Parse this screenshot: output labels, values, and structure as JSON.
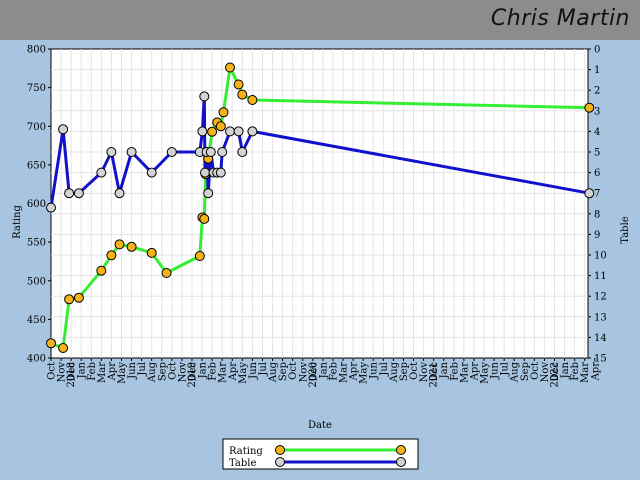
{
  "header": {
    "player_name": "Chris Martin"
  },
  "colors": {
    "rating_line": "#33ee33",
    "table_line": "#1111cc",
    "rating_marker": "#f5b21b",
    "table_marker": "#d3d3d3",
    "background": "#a7c4e0",
    "header": "#8c8c8c"
  },
  "chart_data": {
    "type": "line",
    "xlabel": "Date",
    "ylabel_left": "Rating",
    "ylabel_right": "Table",
    "y_left_range": [
      400,
      800
    ],
    "y_left_ticks": [
      400,
      450,
      500,
      550,
      600,
      650,
      700,
      750,
      800
    ],
    "y_right_range": [
      0,
      15
    ],
    "y_right_ticks": [
      0,
      1,
      2,
      3,
      4,
      5,
      6,
      7,
      8,
      9,
      10,
      11,
      12,
      13,
      14,
      15
    ],
    "x_month_labels": [
      "Oct",
      "Nov",
      "Dec",
      "Jan",
      "Feb",
      "Mar",
      "Apr",
      "May",
      "Jun",
      "Jul",
      "Aug",
      "Sep",
      "Oct",
      "Nov",
      "Dec",
      "Jan",
      "Feb",
      "Mar",
      "Apr",
      "May",
      "Jun",
      "Jul",
      "Aug",
      "Sep",
      "Oct",
      "Nov",
      "Dec",
      "Jan",
      "Feb",
      "Mar",
      "Apr",
      "May",
      "Jun",
      "Jul",
      "Aug",
      "Sep",
      "Oct",
      "Nov",
      "Dec",
      "Jan",
      "Feb",
      "Mar",
      "Apr",
      "May",
      "Jun",
      "Jul",
      "Aug",
      "Sep",
      "Oct",
      "Nov",
      "Dec",
      "Jan",
      "Feb",
      "Mar",
      "Apr"
    ],
    "x_year_labels": [
      {
        "label": "2018",
        "month_index": 3
      },
      {
        "label": "2019",
        "month_index": 15
      },
      {
        "label": "2020",
        "month_index": 27
      },
      {
        "label": "2021",
        "month_index": 39
      },
      {
        "label": "2022",
        "month_index": 51
      }
    ],
    "grid": true,
    "legend_position": "bottom-center",
    "series": [
      {
        "name": "Rating",
        "axis": "left",
        "points": [
          {
            "x": "2017-10-01",
            "y": 419
          },
          {
            "x": "2017-11-07",
            "y": 413
          },
          {
            "x": "2017-11-25",
            "y": 476
          },
          {
            "x": "2017-12-25",
            "y": 478
          },
          {
            "x": "2018-03-01",
            "y": 513
          },
          {
            "x": "2018-04-01",
            "y": 533
          },
          {
            "x": "2018-04-25",
            "y": 547
          },
          {
            "x": "2018-06-01",
            "y": 544
          },
          {
            "x": "2018-08-01",
            "y": 536
          },
          {
            "x": "2018-09-15",
            "y": 510
          },
          {
            "x": "2018-12-25",
            "y": 532
          },
          {
            "x": "2019-01-02",
            "y": 582
          },
          {
            "x": "2019-01-08",
            "y": 580
          },
          {
            "x": "2019-01-12",
            "y": 638
          },
          {
            "x": "2019-01-20",
            "y": 658
          },
          {
            "x": "2019-02-01",
            "y": 693
          },
          {
            "x": "2019-02-15",
            "y": 705
          },
          {
            "x": "2019-02-25",
            "y": 700
          },
          {
            "x": "2019-03-05",
            "y": 718
          },
          {
            "x": "2019-03-25",
            "y": 776
          },
          {
            "x": "2019-04-20",
            "y": 754
          },
          {
            "x": "2019-05-01",
            "y": 741
          },
          {
            "x": "2019-06-01",
            "y": 734
          },
          {
            "x": "2022-03-15",
            "y": 724
          }
        ]
      },
      {
        "name": "Table",
        "axis": "right",
        "points": [
          {
            "x": "2017-10-01",
            "y": 7.7
          },
          {
            "x": "2017-11-07",
            "y": 3.9
          },
          {
            "x": "2017-11-25",
            "y": 7.0
          },
          {
            "x": "2017-12-25",
            "y": 7.0
          },
          {
            "x": "2018-03-01",
            "y": 6.0
          },
          {
            "x": "2018-04-01",
            "y": 5.0
          },
          {
            "x": "2018-04-25",
            "y": 7.0
          },
          {
            "x": "2018-06-01",
            "y": 5.0
          },
          {
            "x": "2018-08-01",
            "y": 6.0
          },
          {
            "x": "2018-10-01",
            "y": 5.0
          },
          {
            "x": "2018-12-25",
            "y": 5.0
          },
          {
            "x": "2019-01-02",
            "y": 4.0
          },
          {
            "x": "2019-01-08",
            "y": 2.3
          },
          {
            "x": "2019-01-10",
            "y": 6.0
          },
          {
            "x": "2019-01-15",
            "y": 5.0
          },
          {
            "x": "2019-01-20",
            "y": 7.0
          },
          {
            "x": "2019-01-28",
            "y": 5.0
          },
          {
            "x": "2019-02-05",
            "y": 6.0
          },
          {
            "x": "2019-02-15",
            "y": 6.0
          },
          {
            "x": "2019-02-25",
            "y": 6.0
          },
          {
            "x": "2019-03-01",
            "y": 5.0
          },
          {
            "x": "2019-03-25",
            "y": 4.0
          },
          {
            "x": "2019-04-20",
            "y": 4.0
          },
          {
            "x": "2019-05-01",
            "y": 5.0
          },
          {
            "x": "2019-06-01",
            "y": 4.0
          },
          {
            "x": "2022-03-15",
            "y": 7.0
          }
        ]
      }
    ]
  }
}
